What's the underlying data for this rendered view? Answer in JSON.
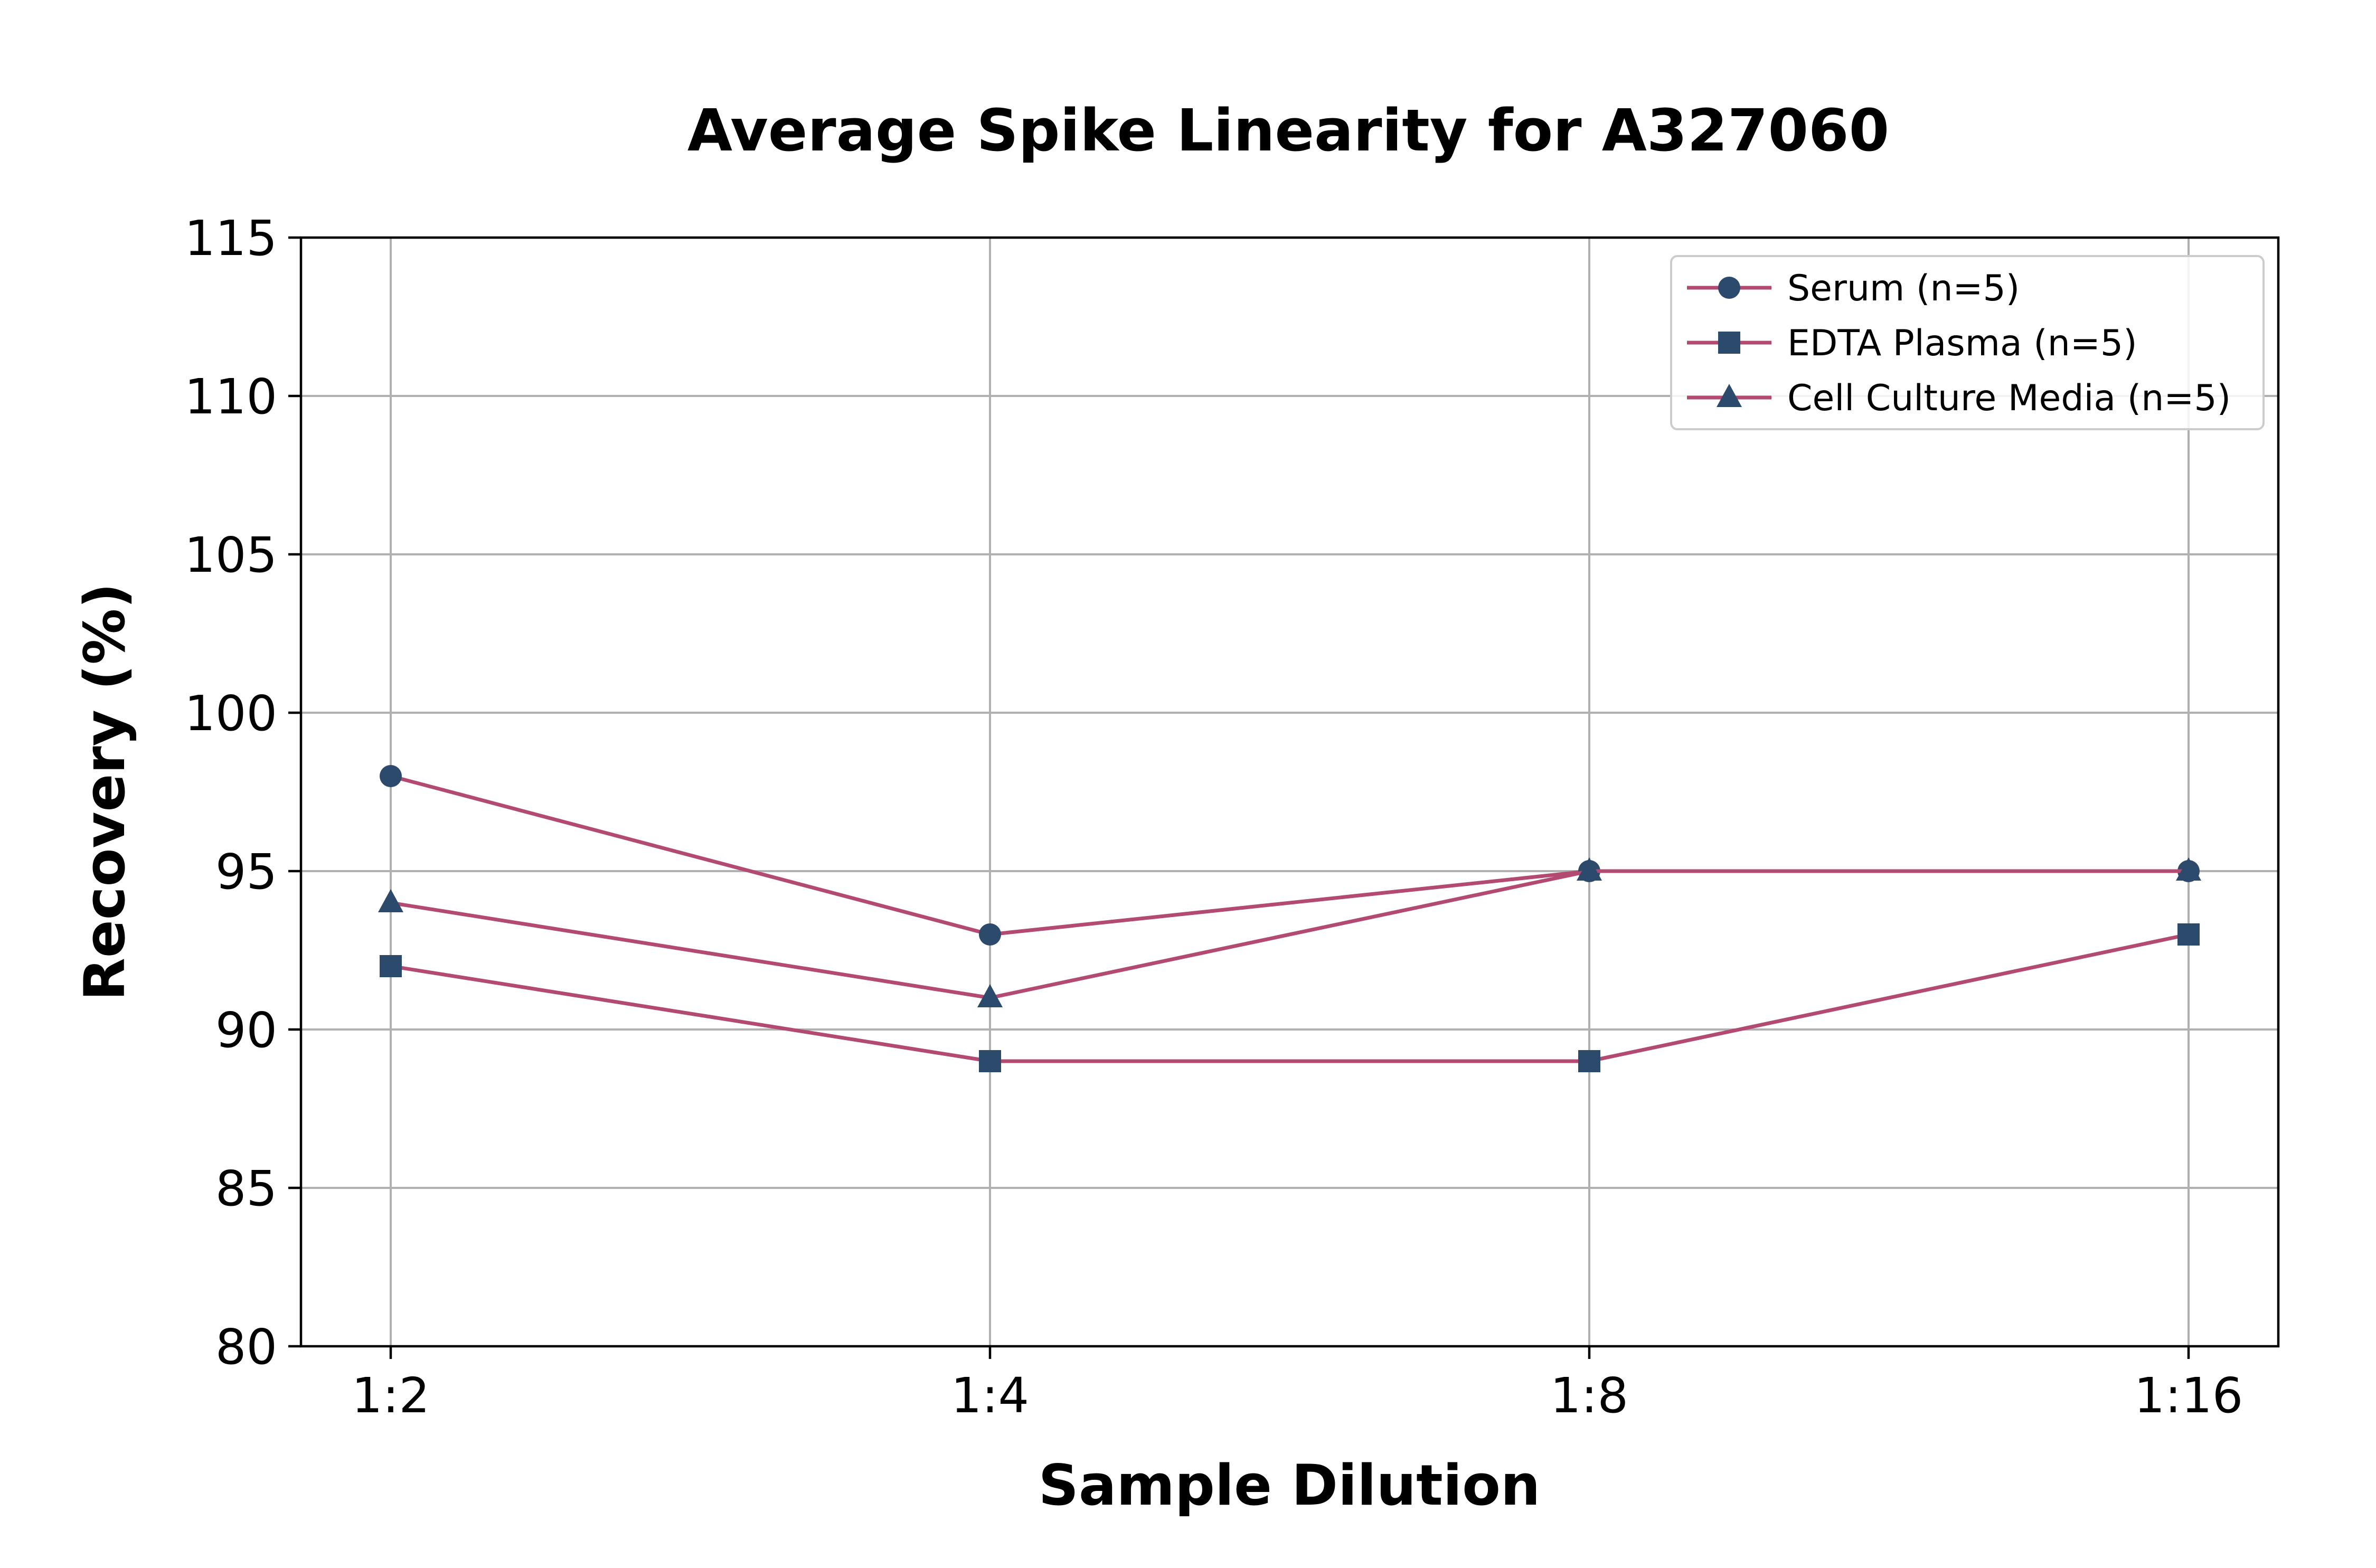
{
  "chart_data": {
    "type": "line",
    "title": "Average Spike Linearity for A327060",
    "xlabel": "Sample Dilution",
    "ylabel": "Recovery (%)",
    "categories": [
      "1:2",
      "1:4",
      "1:8",
      "1:16"
    ],
    "ylim": [
      80,
      115
    ],
    "yticks": [
      80,
      85,
      90,
      95,
      100,
      105,
      110,
      115
    ],
    "grid": true,
    "legend_position": "top-right",
    "line_color": "#b24a72",
    "marker_color": "#2c4a6b",
    "series": [
      {
        "name": "Serum (n=5)",
        "marker": "circle",
        "values": [
          98,
          93,
          95,
          95
        ]
      },
      {
        "name": "EDTA Plasma (n=5)",
        "marker": "square",
        "values": [
          92,
          89,
          89,
          93
        ]
      },
      {
        "name": "Cell Culture Media (n=5)",
        "marker": "triangle",
        "values": [
          94,
          91,
          95,
          95
        ]
      }
    ]
  }
}
